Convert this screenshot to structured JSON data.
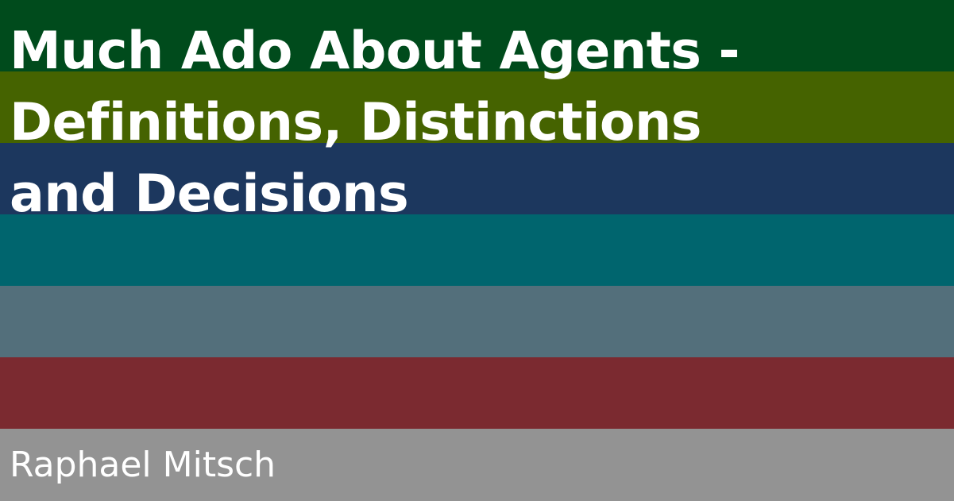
{
  "card": {
    "title": "Much Ado About Agents -\nDefinitions, Distinctions\nand Decisions",
    "author": "Raphael Mitsch"
  },
  "stripes": [
    {
      "name": "stripe-dark-green",
      "color": "#004b1c"
    },
    {
      "name": "stripe-olive-green",
      "color": "#456300"
    },
    {
      "name": "stripe-navy",
      "color": "#1c375e"
    },
    {
      "name": "stripe-teal",
      "color": "#00656e"
    },
    {
      "name": "stripe-slate",
      "color": "#536f7b"
    },
    {
      "name": "stripe-crimson",
      "color": "#7b2a30"
    },
    {
      "name": "stripe-gray",
      "color": "#939393"
    }
  ]
}
